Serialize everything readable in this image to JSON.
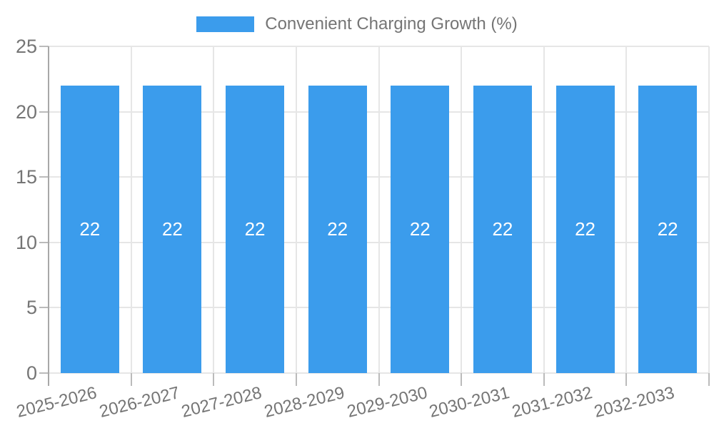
{
  "chart_data": {
    "type": "bar",
    "title": "Convenient Charging Growth (%)",
    "categories": [
      "2025-2026",
      "2026-2027",
      "2027-2028",
      "2028-2029",
      "2029-2030",
      "2030-2031",
      "2031-2032",
      "2032-2033"
    ],
    "values": [
      22,
      22,
      22,
      22,
      22,
      22,
      22,
      22
    ],
    "bar_labels": [
      "22",
      "22",
      "22",
      "22",
      "22",
      "22",
      "22",
      "22"
    ],
    "xlabel": "",
    "ylabel": "",
    "ylim": [
      0,
      25
    ],
    "yticks": [
      "0",
      "5",
      "10",
      "15",
      "20",
      "25"
    ],
    "grid": true,
    "legend_position": "top-center",
    "x_tick_rotation_deg": -14,
    "colors": {
      "bar": "#3B9CEC",
      "bar_label": "#FFFFFF",
      "axis_text": "#757575",
      "grid_line": "#E6E6E6",
      "axis_line": "#A8A8A8",
      "tick_mark": "#BBBBBB",
      "background": "#FFFFFF"
    }
  }
}
